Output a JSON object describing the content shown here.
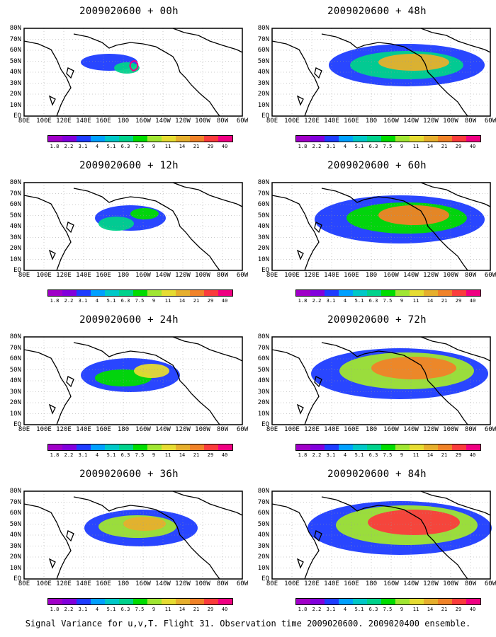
{
  "panels": [
    {
      "title": "2009020600 + 00h"
    },
    {
      "title": "2009020600 + 48h"
    },
    {
      "title": "2009020600 + 12h"
    },
    {
      "title": "2009020600 + 60h"
    },
    {
      "title": "2009020600 + 24h"
    },
    {
      "title": "2009020600 + 72h"
    },
    {
      "title": "2009020600 + 36h"
    },
    {
      "title": "2009020600 + 84h"
    }
  ],
  "lat_labels": [
    "80N",
    "70N",
    "60N",
    "50N",
    "40N",
    "30N",
    "20N",
    "10N",
    "EQ"
  ],
  "lon_labels": [
    "80E",
    "100E",
    "120E",
    "140E",
    "160E",
    "180",
    "160W",
    "140W",
    "120W",
    "100W",
    "80W",
    "60W"
  ],
  "colorbar": {
    "labels": [
      "1.8",
      "2.2",
      "3.1",
      "4",
      "5.1",
      "6.3",
      "7.5",
      "9",
      "11",
      "14",
      "21",
      "29",
      "40"
    ],
    "colors": [
      "#a000c8",
      "#8200dc",
      "#1e3cff",
      "#00a0ff",
      "#00c8c8",
      "#00d28c",
      "#00dc00",
      "#a0e632",
      "#e6dc32",
      "#e6af2d",
      "#f08228",
      "#fa3c3c",
      "#f00082"
    ]
  },
  "footer": "Signal Variance for u,v,T. Flight 31. Observation time 2009020600. 2009020400 ensemble."
}
